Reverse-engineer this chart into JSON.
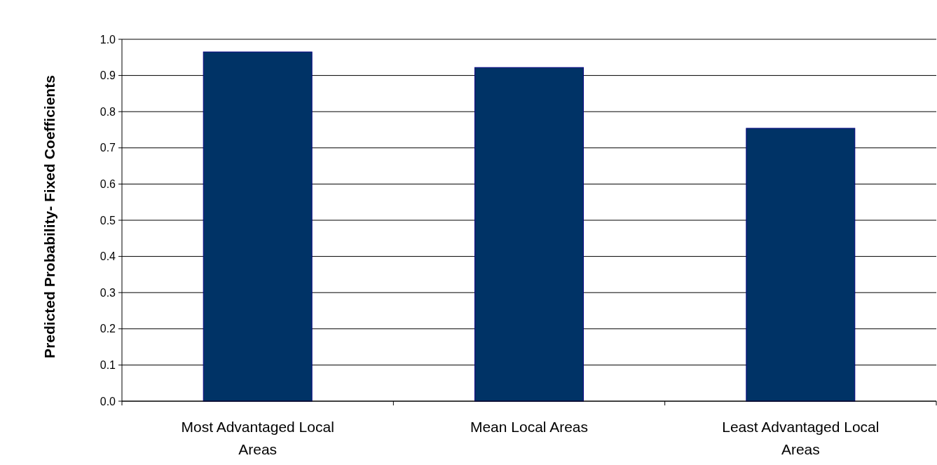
{
  "chart_data": {
    "type": "bar",
    "ylabel": "Predicted Probability- Fixed Coefficients",
    "categories": [
      "Most Advantaged Local Areas",
      "Mean Local Areas",
      "Least Advantaged Local Areas"
    ],
    "values": [
      0.965,
      0.922,
      0.754
    ],
    "color": "#003366",
    "ylim": [
      0,
      1
    ],
    "yticks": [
      {
        "value": 0,
        "label": "0.0"
      },
      {
        "value": 0.1,
        "label": "0.1"
      },
      {
        "value": 0.2,
        "label": "0.2"
      },
      {
        "value": 0.3,
        "label": "0.3"
      },
      {
        "value": 0.4,
        "label": "0.4"
      },
      {
        "value": 0.5,
        "label": "0.5"
      },
      {
        "value": 0.6,
        "label": "0.6"
      },
      {
        "value": 0.7,
        "label": "0.7"
      },
      {
        "value": 0.8,
        "label": "0.8"
      },
      {
        "value": 0.9,
        "label": "0.9"
      },
      {
        "value": 1,
        "label": "1.0"
      }
    ],
    "grid": "y"
  }
}
